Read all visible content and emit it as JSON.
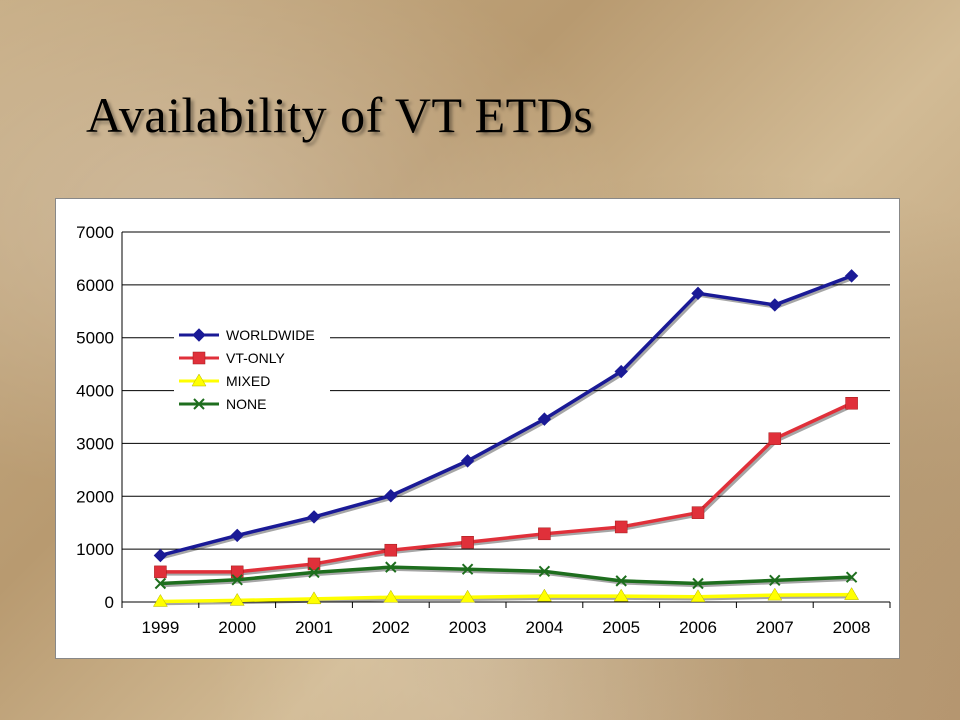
{
  "slide": {
    "title": "Availability of VT ETDs"
  },
  "chart_data": {
    "type": "line",
    "title": "",
    "xlabel": "",
    "ylabel": "",
    "categories": [
      "1999",
      "2000",
      "2001",
      "2002",
      "2003",
      "2004",
      "2005",
      "2006",
      "2007",
      "2008"
    ],
    "ylim": [
      0,
      7000
    ],
    "yticks": [
      0,
      1000,
      2000,
      3000,
      4000,
      5000,
      6000,
      7000
    ],
    "grid": "horizontal",
    "legend_position": "left-center",
    "series": [
      {
        "name": "WORLDWIDE",
        "color": "#1a1a96",
        "marker": "diamond",
        "values": [
          880,
          1260,
          1610,
          2010,
          2670,
          3460,
          4360,
          5840,
          5620,
          6170
        ]
      },
      {
        "name": "VT-ONLY",
        "color": "#e0303a",
        "marker": "square",
        "values": [
          570,
          570,
          720,
          980,
          1130,
          1290,
          1420,
          1690,
          3090,
          3760
        ]
      },
      {
        "name": "MIXED",
        "color": "#ffff00",
        "marker": "triangle",
        "values": [
          10,
          30,
          60,
          90,
          90,
          110,
          110,
          100,
          130,
          140
        ]
      },
      {
        "name": "NONE",
        "color": "#1e6e1e",
        "marker": "x",
        "values": [
          350,
          420,
          560,
          660,
          620,
          580,
          400,
          350,
          410,
          470
        ]
      }
    ]
  }
}
